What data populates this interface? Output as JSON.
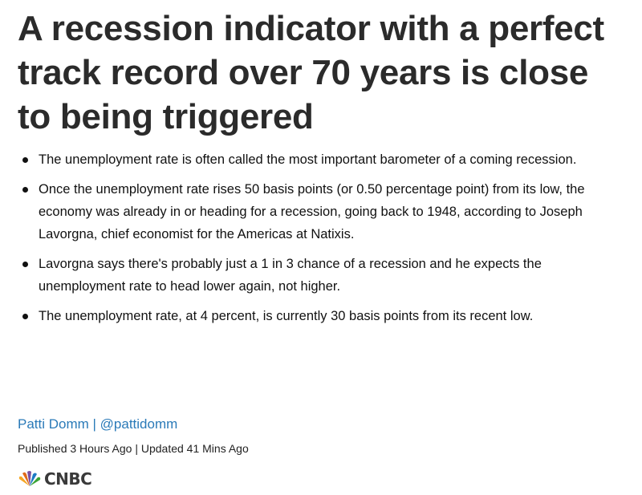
{
  "article": {
    "title": "A recession indicator with a perfect track record over 70 years is close to being triggered",
    "bullets": [
      "The unemployment rate is often called the most important barometer of a coming recession.",
      "Once the unemployment rate rises 50 basis points (or 0.50 percentage point) from its low, the economy was already in or heading for a recession, going back to 1948, according to Joseph Lavorgna, chief economist for the Americas at Natixis.",
      "Lavorgna says there's probably just a 1 in 3 chance of a recession and he expects the unemployment rate to head lower again, not higher.",
      "The unemployment rate, at 4 percent, is currently 30 basis points from its recent low."
    ],
    "author": "Patti Domm",
    "separator": " | ",
    "handle": "@pattidomm",
    "published": "Published 3 Hours Ago",
    "updated": "Updated 41 Mins Ago",
    "logo_text": "CNBC"
  },
  "colors": {
    "link": "#2a7ab8",
    "title": "#2b2b2b"
  }
}
